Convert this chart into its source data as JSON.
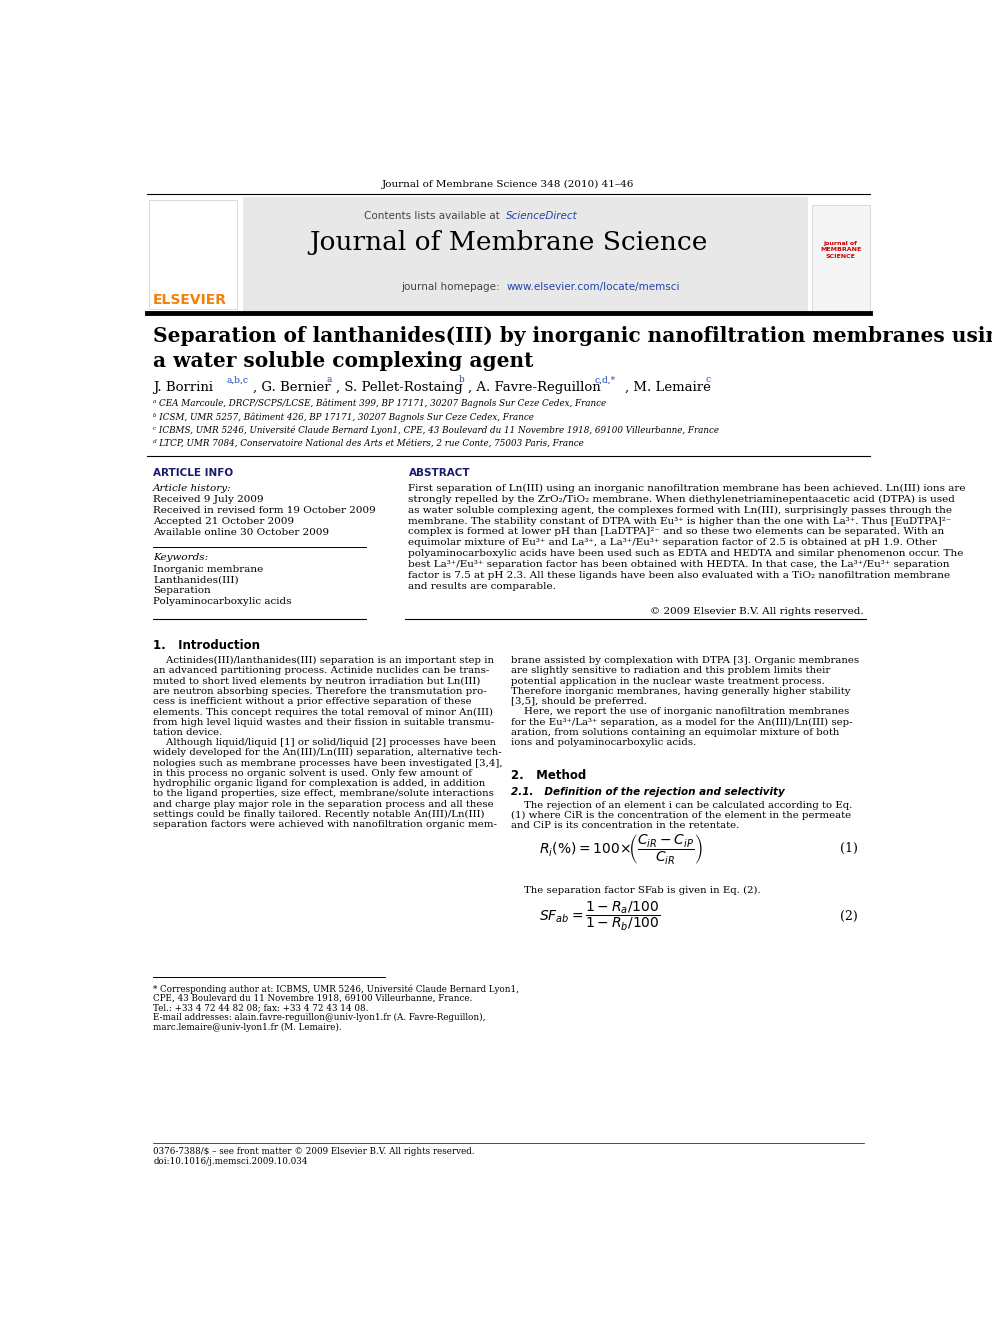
{
  "page_width": 9.92,
  "page_height": 13.23,
  "background_color": "#ffffff",
  "top_journal_line": "Journal of Membrane Science 348 (2010) 41–46",
  "contents_line": "Contents lists available at ",
  "science_direct": "ScienceDirect",
  "journal_title_header": "Journal of Membrane Science",
  "journal_homepage_prefix": "journal homepage: ",
  "journal_homepage_url": "www.elsevier.com/locate/memsci",
  "paper_title": "Separation of lanthanides(III) by inorganic nanofiltration membranes using\na water soluble complexing agent",
  "affiliations": [
    "ᵃ CEA Marcoule, DRCP/SCPS/LCSE, Bâtiment 399, BP 17171, 30207 Bagnols Sur Ceze Cedex, France",
    "ᵇ ICSM, UMR 5257, Bâtiment 426, BP 17171, 30207 Bagnols Sur Ceze Cedex, France",
    "ᶜ ICBMS, UMR 5246, Université Claude Bernard Lyon1, CPE, 43 Boulevard du 11 Novembre 1918, 69100 Villeurbanne, France",
    "ᵈ LTCP, UMR 7084, Conservatoire National des Arts et Métiers, 2 rue Conte, 75003 Paris, France"
  ],
  "article_info_header": "ARTICLE INFO",
  "abstract_header": "ABSTRACT",
  "article_history_title": "Article history:",
  "article_history": [
    "Received 9 July 2009",
    "Received in revised form 19 October 2009",
    "Accepted 21 October 2009",
    "Available online 30 October 2009"
  ],
  "keywords_title": "Keywords:",
  "keywords": [
    "Inorganic membrane",
    "Lanthanides(III)",
    "Separation",
    "Polyaminocarboxylic acids"
  ],
  "abstract_text": "First separation of Ln(III) using an inorganic nanofiltration membrane has been achieved. Ln(III) ions are\nstrongly repelled by the ZrO₂/TiO₂ membrane. When diethylenetriaminepentaacetic acid (DTPA) is used\nas water soluble complexing agent, the complexes formed with Ln(III), surprisingly passes through the\nmembrane. The stability constant of DTPA with Eu³⁺ is higher than the one with La³⁺. Thus [EuDTPA]²⁻\ncomplex is formed at lower pH than [LaDTPA]²⁻ and so these two elements can be separated. With an\nequimolar mixture of Eu³⁺ and La³⁺, a La³⁺/Eu³⁺ separation factor of 2.5 is obtained at pH 1.9. Other\npolyaminocarboxylic acids have been used such as EDTA and HEDTA and similar phenomenon occur. The\nbest La³⁺/Eu³⁺ separation factor has been obtained with HEDTA. In that case, the La³⁺/Eu³⁺ separation\nfactor is 7.5 at pH 2.3. All these ligands have been also evaluated with a TiO₂ nanofiltration membrane\nand results are comparable.",
  "copyright": "© 2009 Elsevier B.V. All rights reserved.",
  "section1_title": "1.   Introduction",
  "section1_left": "    Actinides(III)/lanthanides(III) separation is an important step in\nan advanced partitioning process. Actinide nuclides can be trans-\nmuted to short lived elements by neutron irradiation but Ln(III)\nare neutron absorbing species. Therefore the transmutation pro-\ncess is inefficient without a prior effective separation of these\nelements. This concept requires the total removal of minor An(III)\nfrom high level liquid wastes and their fission in suitable transmu-\ntation device.\n    Although liquid/liquid [1] or solid/liquid [2] processes have been\nwidely developed for the An(III)/Ln(III) separation, alternative tech-\nnologies such as membrane processes have been investigated [3,4],\nin this process no organic solvent is used. Only few amount of\nhydrophilic organic ligand for complexation is added, in addition\nto the ligand properties, size effect, membrane/solute interactions\nand charge play major role in the separation process and all these\nsettings could be finally tailored. Recently notable An(III)/Ln(III)\nseparation factors were achieved with nanofiltration organic mem-",
  "section1_right": "brane assisted by complexation with DTPA [3]. Organic membranes\nare slightly sensitive to radiation and this problem limits their\npotential application in the nuclear waste treatment process.\nTherefore inorganic membranes, having generally higher stability\n[3,5], should be preferred.\n    Here, we report the use of inorganic nanofiltration membranes\nfor the Eu³⁺/La³⁺ separation, as a model for the An(III)/Ln(III) sep-\naration, from solutions containing an equimolar mixture of both\nions and polyaminocarboxylic acids.",
  "section2_title": "2.   Method",
  "section2_1_title": "2.1.   Definition of the rejection and selectivity",
  "section2_1_text": "    The rejection of an element i can be calculated according to Eq.\n(1) where CiR is the concentration of the element in the permeate\nand CiP is its concentration in the retentate.",
  "sep_factor_text": "    The separation factor SFab is given in Eq. (2).",
  "eq1_label": "(1)",
  "eq2_label": "(2)",
  "footnote_text": "* Corresponding author at: ICBMS, UMR 5246, Université Claude Bernard Lyon1,\nCPE, 43 Boulevard du 11 Novembre 1918, 69100 Villeurbanne, France.\nTel.: +33 4 72 44 82 08; fax: +33 4 72 43 14 08.\nE-mail addresses: alain.favre-reguillon@univ-lyon1.fr (A. Favre-Reguillon),\nmarc.lemaire@univ-lyon1.fr (M. Lemaire).",
  "bottom_line1": "0376-7388/$ – see front matter © 2009 Elsevier B.V. All rights reserved.",
  "bottom_line2": "doi:10.1016/j.memsci.2009.10.034",
  "header_bg_color": "#e8e8e8",
  "elsevier_orange": "#f0820a",
  "science_direct_color": "#2244aa",
  "url_color": "#2244aa",
  "section_header_color": "#1a1a6e",
  "author_affil_color": "#2244aa",
  "black": "#000000",
  "dark_gray": "#444444",
  "light_gray": "#cccccc",
  "mid_gray": "#888888"
}
